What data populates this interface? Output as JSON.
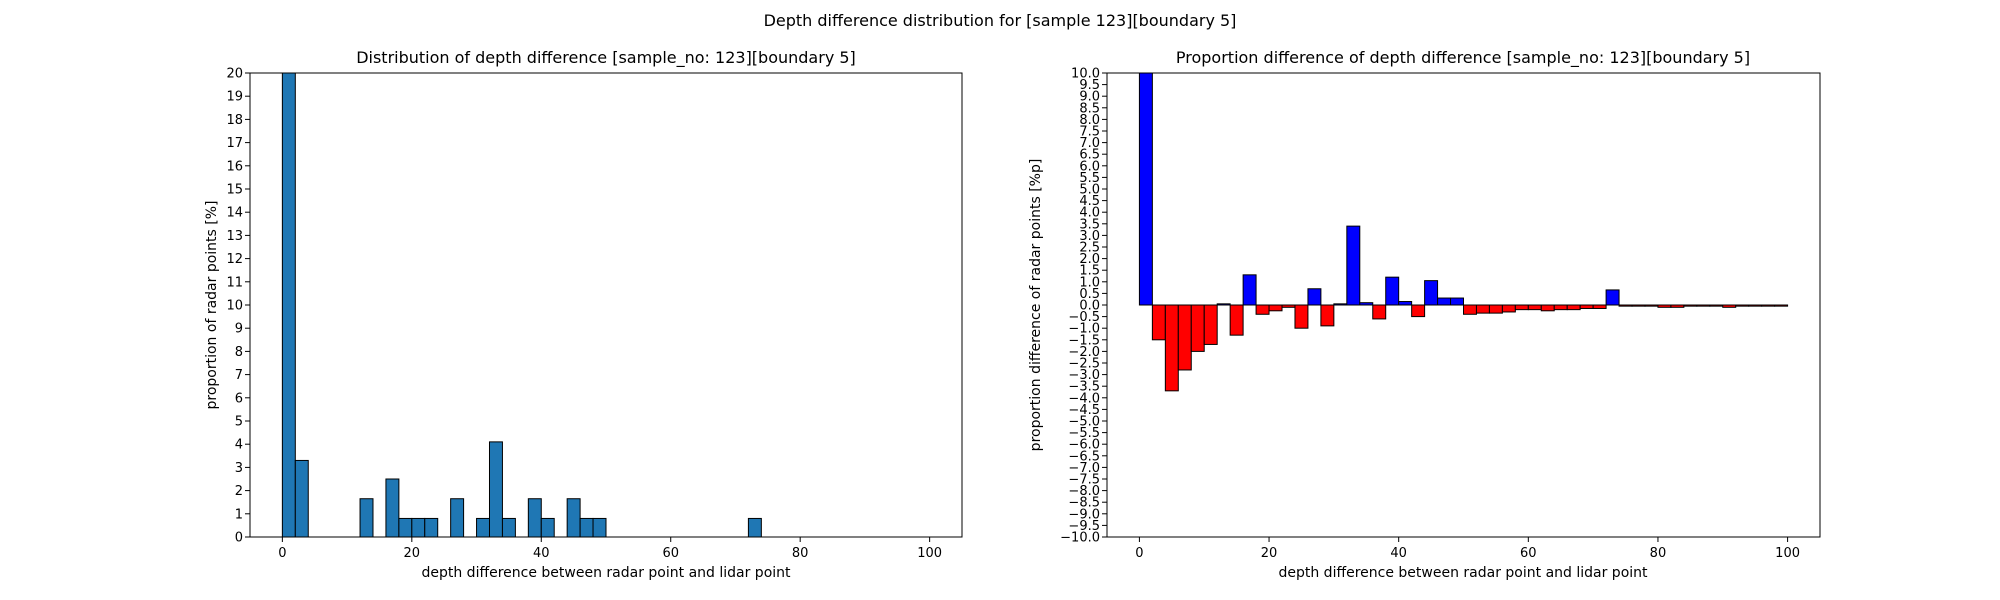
{
  "figure": {
    "suptitle": "Depth difference distribution for [sample 123][boundary 5]"
  },
  "chart_data": [
    {
      "type": "bar",
      "title": "Distribution of depth difference [sample_no: 123][boundary 5]",
      "xlabel": "depth difference between radar point and lidar point",
      "ylabel": "proportion of radar points [%]",
      "xlim": [
        -5,
        105
      ],
      "ylim": [
        0,
        20
      ],
      "xticks": [
        0,
        20,
        40,
        60,
        80,
        100
      ],
      "yticks": [
        0,
        1,
        2,
        3,
        4,
        5,
        6,
        7,
        8,
        9,
        10,
        11,
        12,
        13,
        14,
        15,
        16,
        17,
        18,
        19,
        20
      ],
      "bin_width": 2,
      "bins_start": [
        0,
        2,
        12,
        16,
        18,
        20,
        22,
        26,
        30,
        32,
        34,
        38,
        40,
        44,
        46,
        48,
        72
      ],
      "values": [
        20,
        3.3,
        1.65,
        2.5,
        0.8,
        0.8,
        0.8,
        1.65,
        0.8,
        4.1,
        0.8,
        1.65,
        0.8,
        1.65,
        0.8,
        0.8,
        0.8
      ],
      "colors": {
        "bar": "#1f77b4"
      }
    },
    {
      "type": "bar",
      "title": "Proportion difference of depth difference [sample_no: 123][boundary 5]",
      "xlabel": "depth difference between radar point and lidar point",
      "ylabel": "proportion difference of radar points [%p]",
      "xlim": [
        -5,
        105
      ],
      "ylim": [
        -10,
        10
      ],
      "xticks": [
        0,
        20,
        40,
        60,
        80,
        100
      ],
      "ytick_step": 0.5,
      "bin_width": 2,
      "bins_start": [
        0,
        2,
        4,
        6,
        8,
        10,
        12,
        14,
        16,
        18,
        20,
        22,
        24,
        26,
        28,
        30,
        32,
        34,
        36,
        38,
        40,
        42,
        44,
        46,
        48,
        50,
        52,
        54,
        56,
        58,
        60,
        62,
        64,
        66,
        68,
        70,
        72,
        74,
        76,
        78,
        80,
        82,
        84,
        86,
        88,
        90,
        92,
        94,
        96,
        98
      ],
      "values": [
        10,
        -1.5,
        -3.7,
        -2.8,
        -2.0,
        -1.7,
        0.05,
        -1.3,
        1.3,
        -0.4,
        -0.25,
        -0.1,
        -1.0,
        0.7,
        -0.9,
        0.05,
        3.4,
        0.1,
        -0.6,
        1.2,
        0.15,
        -0.5,
        1.05,
        0.3,
        0.3,
        -0.4,
        -0.35,
        -0.35,
        -0.3,
        -0.2,
        -0.2,
        -0.25,
        -0.2,
        -0.2,
        -0.15,
        -0.15,
        0.65,
        -0.05,
        -0.05,
        -0.05,
        -0.1,
        -0.1,
        -0.05,
        -0.05,
        -0.05,
        -0.1,
        -0.05,
        -0.05,
        -0.05,
        -0.05
      ],
      "colors": {
        "positive": "#0000ff",
        "negative": "#ff0000"
      }
    }
  ]
}
